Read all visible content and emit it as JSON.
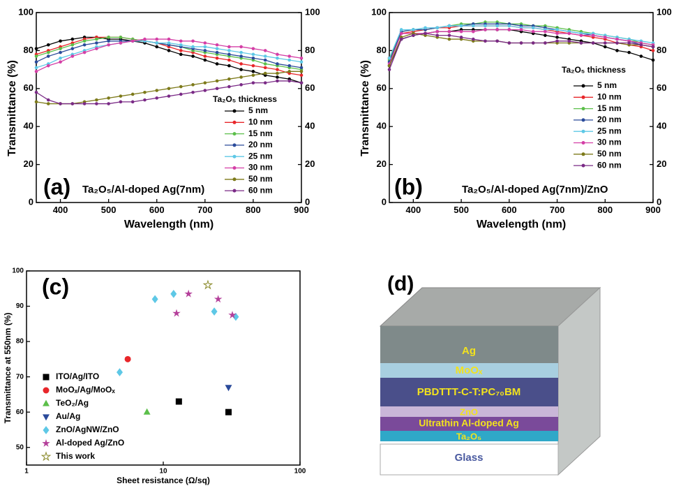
{
  "chart_data": [
    {
      "type": "line",
      "panel_label": "(a)",
      "annotation": "Ta₂O₅/Al-doped Ag(7nm)",
      "xlabel": "Wavelength (nm)",
      "ylabel": "Transmittance (%)",
      "legend_title": "Ta₂O₅ thickness",
      "legend": "center-right",
      "x": [
        350,
        375,
        400,
        425,
        450,
        475,
        500,
        525,
        550,
        575,
        600,
        625,
        650,
        675,
        700,
        725,
        750,
        775,
        800,
        825,
        850,
        875,
        900
      ],
      "xlim": [
        350,
        900
      ],
      "xticks": [
        400,
        500,
        600,
        700,
        800,
        900
      ],
      "ylim": [
        0,
        100
      ],
      "yticks": [
        0,
        20,
        40,
        60,
        80,
        100
      ],
      "y2lim": [
        0,
        100
      ],
      "y2ticks": [
        0,
        20,
        40,
        60,
        80,
        100
      ],
      "series": [
        {
          "name": "5 nm",
          "color": "#000000",
          "values": [
            81,
            83,
            85,
            86,
            87,
            87,
            86,
            86,
            85,
            84,
            82,
            80,
            78,
            77,
            75,
            73,
            72,
            70,
            69,
            67,
            66,
            65,
            63
          ]
        },
        {
          "name": "10 nm",
          "color": "#e8262a",
          "values": [
            78,
            80,
            82,
            84,
            86,
            87,
            87,
            87,
            86,
            85,
            84,
            82,
            80,
            79,
            77,
            76,
            75,
            73,
            72,
            71,
            70,
            68,
            67
          ]
        },
        {
          "name": "15 nm",
          "color": "#5cbf4a",
          "values": [
            77,
            79,
            81,
            83,
            85,
            86,
            87,
            87,
            86,
            85,
            84,
            83,
            82,
            80,
            79,
            78,
            77,
            76,
            75,
            73,
            72,
            71,
            70
          ]
        },
        {
          "name": "20 nm",
          "color": "#2a4a9a",
          "values": [
            74,
            77,
            79,
            81,
            83,
            84,
            85,
            85,
            85,
            85,
            84,
            83,
            82,
            81,
            80,
            79,
            78,
            77,
            76,
            75,
            73,
            72,
            71
          ]
        },
        {
          "name": "25 nm",
          "color": "#5ec8e6",
          "values": [
            71,
            73,
            76,
            78,
            80,
            82,
            83,
            84,
            85,
            85,
            84,
            84,
            83,
            82,
            82,
            81,
            80,
            79,
            78,
            77,
            76,
            75,
            74
          ]
        },
        {
          "name": "30 nm",
          "color": "#d43fa6",
          "values": [
            69,
            72,
            74,
            77,
            79,
            81,
            83,
            84,
            85,
            86,
            86,
            86,
            85,
            85,
            84,
            83,
            82,
            82,
            81,
            80,
            78,
            77,
            76
          ]
        },
        {
          "name": "50 nm",
          "color": "#7d7a1a",
          "values": [
            53,
            52,
            52,
            52,
            53,
            54,
            55,
            56,
            57,
            58,
            59,
            60,
            61,
            62,
            63,
            64,
            65,
            66,
            67,
            68,
            68,
            69,
            69
          ]
        },
        {
          "name": "60 nm",
          "color": "#7a2a86",
          "values": [
            58,
            54,
            52,
            52,
            52,
            52,
            52,
            53,
            53,
            54,
            55,
            56,
            57,
            58,
            59,
            60,
            61,
            62,
            63,
            63,
            64,
            64,
            63
          ]
        }
      ]
    },
    {
      "type": "line",
      "panel_label": "(b)",
      "annotation": "Ta₂O₅/Al-doped Ag(7nm)/ZnO",
      "xlabel": "Wavelength (nm)",
      "ylabel": "Transmittance (%)",
      "legend_title": "Ta₂O₅ thickness",
      "legend": "center-right",
      "x": [
        350,
        375,
        400,
        425,
        450,
        475,
        500,
        525,
        550,
        575,
        600,
        625,
        650,
        675,
        700,
        725,
        750,
        775,
        800,
        825,
        850,
        875,
        900
      ],
      "xlim": [
        350,
        900
      ],
      "xticks": [
        400,
        500,
        600,
        700,
        800,
        900
      ],
      "ylim": [
        0,
        100
      ],
      "yticks": [
        0,
        20,
        40,
        60,
        80,
        100
      ],
      "y2lim": [
        0,
        100
      ],
      "y2ticks": [
        0,
        20,
        40,
        60,
        80,
        100
      ],
      "series": [
        {
          "name": "5 nm",
          "color": "#000000",
          "values": [
            72,
            86,
            88,
            89,
            90,
            90,
            91,
            91,
            91,
            91,
            91,
            90,
            89,
            88,
            87,
            86,
            85,
            84,
            82,
            80,
            79,
            77,
            75
          ]
        },
        {
          "name": "10 nm",
          "color": "#e8262a",
          "values": [
            76,
            89,
            90,
            91,
            92,
            92,
            93,
            93,
            93,
            93,
            93,
            92,
            92,
            91,
            90,
            89,
            88,
            87,
            86,
            84,
            83,
            82,
            80
          ]
        },
        {
          "name": "15 nm",
          "color": "#5cbf4a",
          "values": [
            75,
            90,
            91,
            91,
            92,
            93,
            94,
            94,
            95,
            95,
            94,
            94,
            93,
            93,
            92,
            91,
            90,
            89,
            88,
            87,
            86,
            84,
            83
          ]
        },
        {
          "name": "20 nm",
          "color": "#2a4a9a",
          "values": [
            74,
            90,
            91,
            91,
            92,
            93,
            93,
            94,
            94,
            94,
            94,
            93,
            93,
            92,
            91,
            90,
            89,
            88,
            87,
            86,
            85,
            83,
            82
          ]
        },
        {
          "name": "25 nm",
          "color": "#5ec8e6",
          "values": [
            76,
            91,
            91,
            92,
            92,
            93,
            93,
            93,
            93,
            93,
            93,
            92,
            92,
            91,
            91,
            90,
            89,
            89,
            88,
            87,
            86,
            85,
            84
          ]
        },
        {
          "name": "30 nm",
          "color": "#d43fa6",
          "values": [
            73,
            89,
            89,
            89,
            90,
            90,
            90,
            90,
            91,
            91,
            91,
            91,
            90,
            90,
            89,
            89,
            88,
            88,
            87,
            86,
            85,
            84,
            83
          ]
        },
        {
          "name": "50 nm",
          "color": "#7d7a1a",
          "values": [
            72,
            87,
            89,
            88,
            87,
            86,
            86,
            85,
            85,
            85,
            84,
            84,
            84,
            84,
            84,
            84,
            84,
            84,
            84,
            84,
            83,
            83,
            82
          ]
        },
        {
          "name": "60 nm",
          "color": "#7a2a86",
          "values": [
            70,
            86,
            88,
            89,
            88,
            88,
            87,
            86,
            85,
            85,
            84,
            84,
            84,
            84,
            85,
            85,
            84,
            84,
            84,
            84,
            84,
            83,
            82
          ]
        }
      ]
    },
    {
      "type": "scatter",
      "panel_label": "(c)",
      "xlabel": "Sheet resistance (Ω/sq)",
      "ylabel": "Transmittance at 550nm (%)",
      "xscale": "log",
      "legend": "lower-left",
      "xlim": [
        1,
        100
      ],
      "xticks": [
        1,
        10,
        100
      ],
      "ylim": [
        45,
        100
      ],
      "yticks": [
        50,
        60,
        70,
        80,
        90,
        100
      ],
      "series": [
        {
          "name": "ITO/Ag/ITO",
          "color": "#000000",
          "marker": "square",
          "x": [
            13,
            30
          ],
          "values": [
            63,
            60
          ]
        },
        {
          "name": "MoOₓ/Ag/MoOₓ",
          "color": "#e8262a",
          "marker": "circle",
          "x": [
            5.5
          ],
          "values": [
            75
          ]
        },
        {
          "name": "TeO₂/Ag",
          "color": "#5cbf4a",
          "marker": "triangle-up",
          "x": [
            7.6
          ],
          "values": [
            60
          ]
        },
        {
          "name": "Au/Ag",
          "color": "#2a4a9a",
          "marker": "triangle-down",
          "x": [
            30
          ],
          "values": [
            67
          ]
        },
        {
          "name": "ZnO/AgNW/ZnO",
          "color": "#5ec8e6",
          "marker": "diamond",
          "x": [
            4.8,
            8.7,
            11.9,
            23.6,
            33.9
          ],
          "values": [
            71.3,
            92,
            93.5,
            88.5,
            87
          ]
        },
        {
          "name": "Al-doped Ag/ZnO",
          "color": "#b43f9a",
          "marker": "star",
          "x": [
            12.5,
            15.3,
            25.2,
            32
          ],
          "values": [
            88,
            93.5,
            92,
            87.5
          ]
        },
        {
          "name": "This work",
          "color": "#8a8a2a",
          "marker": "star-open",
          "x": [
            21.2
          ],
          "values": [
            96
          ]
        }
      ]
    }
  ],
  "diagram": {
    "label": "(d)",
    "layers": [
      "Ag",
      "MoOₓ",
      "PBDTTT-C-T:PC₇₀BM",
      "ZnO",
      "Ultrathin Al-doped Ag",
      "Ta₂O₅",
      "Glass"
    ]
  }
}
